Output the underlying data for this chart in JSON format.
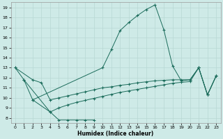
{
  "xlabel": "Humidex (Indice chaleur)",
  "bg_color": "#ceeae7",
  "grid_color": "#b8d8d4",
  "line_color": "#1a6b5a",
  "xlim": [
    -0.5,
    23.5
  ],
  "ylim": [
    7.5,
    19.5
  ],
  "yticks": [
    8,
    9,
    10,
    11,
    12,
    13,
    14,
    15,
    16,
    17,
    18,
    19
  ],
  "xticks": [
    0,
    1,
    2,
    3,
    4,
    5,
    6,
    7,
    8,
    9,
    10,
    11,
    12,
    13,
    14,
    15,
    16,
    17,
    18,
    19,
    20,
    21,
    22,
    23
  ],
  "main_x": [
    0,
    1,
    2,
    10,
    11,
    12,
    13,
    14,
    15,
    16,
    17,
    18,
    19,
    20,
    21,
    22,
    23
  ],
  "main_y": [
    13,
    11.8,
    9.8,
    13,
    14.8,
    16.7,
    17.5,
    18.2,
    18.8,
    19.25,
    16.8,
    13.2,
    11.7,
    11.8,
    13.0,
    10.3,
    12.2
  ],
  "flat_x": [
    2,
    4,
    5,
    6,
    7,
    8,
    9
  ],
  "flat_y": [
    9.8,
    8.6,
    7.8,
    7.8,
    7.8,
    7.8,
    7.8
  ],
  "env1_x": [
    0,
    2,
    3,
    4,
    5,
    6,
    7,
    8,
    9,
    10,
    11,
    12,
    13,
    14,
    15,
    16,
    17,
    18,
    19,
    20,
    21,
    22,
    23
  ],
  "env1_y": [
    13,
    11.8,
    11.5,
    9.8,
    10.0,
    10.2,
    10.4,
    10.6,
    10.8,
    11.0,
    11.1,
    11.25,
    11.35,
    11.5,
    11.6,
    11.7,
    11.75,
    11.8,
    11.8,
    11.8,
    13.0,
    10.3,
    12.2
  ],
  "env2_x": [
    1,
    4,
    5,
    6,
    7,
    8,
    9,
    10,
    11,
    12,
    13,
    14,
    15,
    16,
    17,
    18,
    19,
    20,
    21,
    22,
    23
  ],
  "env2_y": [
    11.8,
    8.6,
    9.0,
    9.3,
    9.55,
    9.75,
    9.95,
    10.15,
    10.35,
    10.55,
    10.7,
    10.85,
    11.0,
    11.15,
    11.3,
    11.45,
    11.55,
    11.62,
    13.0,
    10.3,
    12.2
  ]
}
